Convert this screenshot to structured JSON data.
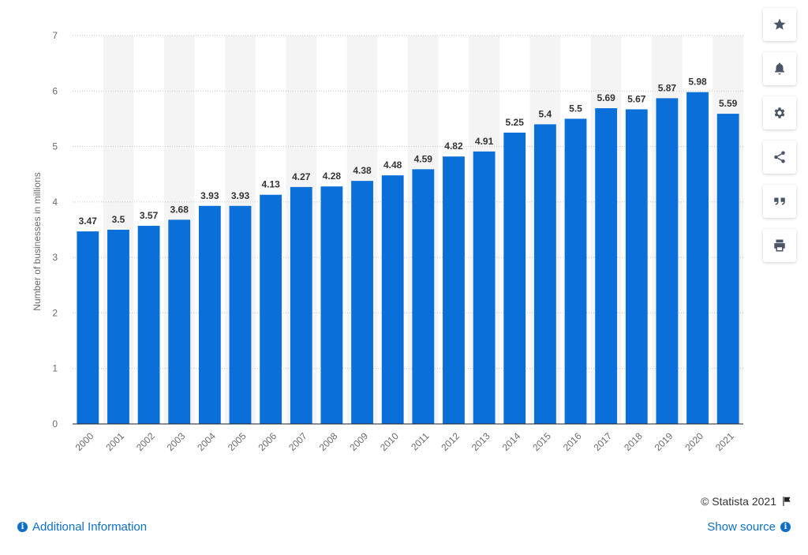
{
  "chart_data": {
    "type": "bar",
    "categories": [
      "2000",
      "2001",
      "2002",
      "2003",
      "2004",
      "2005",
      "2006",
      "2007",
      "2008",
      "2009",
      "2010",
      "2011",
      "2012",
      "2013",
      "2014",
      "2015",
      "2016",
      "2017",
      "2018",
      "2019",
      "2020",
      "2021"
    ],
    "values": [
      3.47,
      3.5,
      3.57,
      3.68,
      3.93,
      3.93,
      4.13,
      4.27,
      4.28,
      4.38,
      4.48,
      4.59,
      4.82,
      4.91,
      5.25,
      5.4,
      5.5,
      5.69,
      5.67,
      5.87,
      5.98,
      5.59
    ],
    "value_labels": [
      "3.47",
      "3.5",
      "3.57",
      "3.68",
      "3.93",
      "3.93",
      "4.13",
      "4.27",
      "4.28",
      "4.38",
      "4.48",
      "4.59",
      "4.82",
      "4.91",
      "5.25",
      "5.4",
      "5.5",
      "5.69",
      "5.67",
      "5.87",
      "5.98",
      "5.59"
    ],
    "ylabel": "Number of businesses in millions",
    "ylim": [
      0,
      7
    ],
    "yticks": [
      0,
      1,
      2,
      3,
      4,
      5,
      6,
      7
    ],
    "grid": true,
    "bar_color": "#0a6fd9",
    "band_color": "#f4f4f4"
  },
  "toolbar": {
    "icons": [
      "star-icon",
      "bell-icon",
      "gear-icon",
      "share-icon",
      "quote-icon",
      "print-icon"
    ]
  },
  "footer": {
    "copyright": "© Statista 2021",
    "additional_info": "Additional Information",
    "show_source": "Show source"
  },
  "colors": {
    "link": "#0d6fc7"
  }
}
